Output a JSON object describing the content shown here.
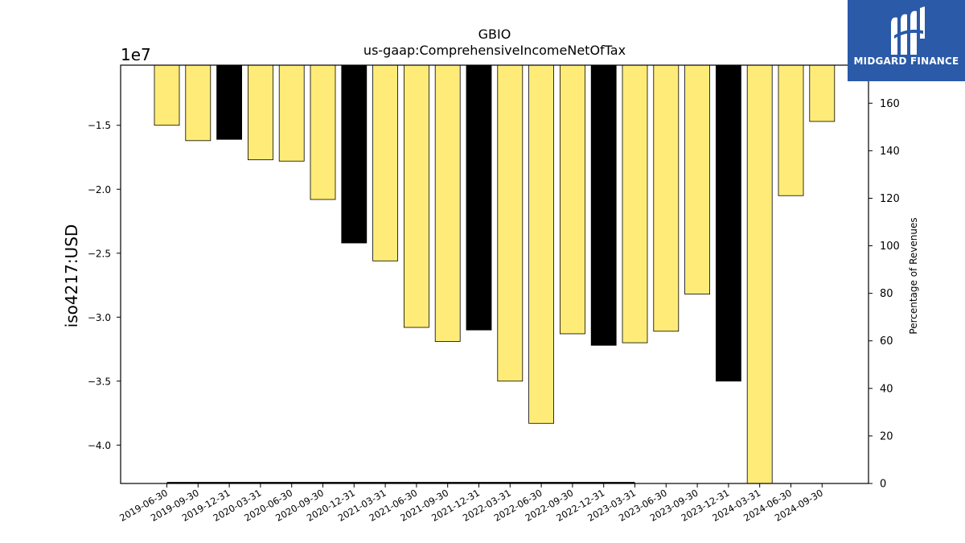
{
  "chart_data": {
    "type": "bar",
    "title": "GBIO",
    "subtitle": "us-gaap:ComprehensiveIncomeNetOfTax",
    "ylabel": "iso4217:USD",
    "y_offset_label": "1e7",
    "y2label": "Percentage of Revenues",
    "ylim": [
      -4.3,
      -1.03
    ],
    "y2lim": [
      0,
      176
    ],
    "yticks": [
      -4.0,
      -3.5,
      -3.0,
      -2.5,
      -2.0,
      -1.5
    ],
    "y2ticks": [
      0,
      20,
      40,
      60,
      80,
      100,
      120,
      140,
      160
    ],
    "categories": [
      "2019-06-30",
      "2019-09-30",
      "2019-12-31",
      "2020-03-31",
      "2020-06-30",
      "2020-09-30",
      "2020-12-31",
      "2021-03-31",
      "2021-06-30",
      "2021-09-30",
      "2021-12-31",
      "2022-03-31",
      "2022-06-30",
      "2022-09-30",
      "2022-12-31",
      "2023-03-31",
      "2023-06-30",
      "2023-09-30",
      "2023-12-31",
      "2024-03-31",
      "2024-06-30",
      "2024-09-30"
    ],
    "values": [
      -1.5,
      -1.62,
      -1.61,
      -1.77,
      -1.78,
      -2.08,
      -2.42,
      -2.56,
      -3.08,
      -3.19,
      -3.1,
      -3.5,
      -3.83,
      -3.13,
      -3.22,
      -3.2,
      -3.11,
      -2.82,
      -3.5,
      -4.3,
      -2.05,
      -1.47
    ],
    "annual": [
      false,
      false,
      true,
      false,
      false,
      false,
      true,
      false,
      false,
      false,
      true,
      false,
      false,
      false,
      true,
      false,
      false,
      false,
      true,
      false,
      false,
      false
    ],
    "percent_line": {
      "start_index": 0,
      "end_index": 15,
      "value": 0.3
    },
    "colors": {
      "quarter": "#ffec78",
      "annual": "#000000",
      "edge": "#000000",
      "line": "#000000"
    },
    "grid": false,
    "legend": "none"
  },
  "logo": {
    "name": "MIDGARD FINANCE",
    "icon": "midgard-logo-icon"
  }
}
